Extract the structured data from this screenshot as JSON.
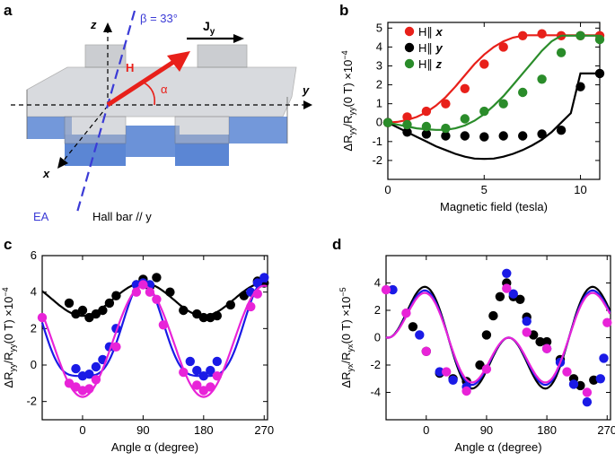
{
  "panels": {
    "a": "a",
    "b": "b",
    "c": "c",
    "d": "d"
  },
  "schematic": {
    "beta_label": "β = 33°",
    "current_label": "J",
    "current_sub": "y",
    "field_label": "H",
    "alpha_label": "α",
    "axis_z": "z",
    "axis_y": "y",
    "axis_x": "x",
    "ea_label": "EA",
    "hallbar_label": "Hall bar // y",
    "colors": {
      "field": "#e8201a",
      "ea": "#3b3bd6",
      "substrate": "#5b86d4"
    }
  },
  "chart_data": [
    {
      "id": "b",
      "type": "scatter",
      "xlabel": "Magnetic field (tesla)",
      "ylabel_main": "ΔR",
      "ylabel_sub": "yy",
      "ylabel_mid": "/R",
      "ylabel_sub2": "yy",
      "ylabel_tail": "(0 T) ×10",
      "ylabel_exp": "−4",
      "xlim": [
        0,
        11
      ],
      "ylim": [
        -3,
        5.3
      ],
      "xticks": [
        0,
        5,
        10
      ],
      "yticks": [
        -2,
        -1,
        0,
        1,
        2,
        3,
        4,
        5
      ],
      "legend": [
        "H∥",
        "H∥",
        "H∥"
      ],
      "legend_axes": [
        "x",
        "y",
        "z"
      ],
      "series": [
        {
          "name": "H∥x",
          "color": "#e8201a",
          "x": [
            0,
            1,
            2,
            3,
            4,
            5,
            6,
            7,
            8,
            9,
            10,
            11
          ],
          "y": [
            0,
            0.3,
            0.6,
            1.0,
            1.8,
            3.1,
            4.0,
            4.6,
            4.7,
            4.6,
            4.6,
            4.6
          ],
          "fit_x": [
            0,
            0.5,
            1,
            1.5,
            2,
            2.5,
            3,
            3.5,
            4,
            4.5,
            5,
            5.5,
            6,
            6.5,
            7,
            7.3,
            7.6,
            8,
            9,
            10,
            11
          ],
          "fit_y": [
            0,
            0.04,
            0.14,
            0.3,
            0.55,
            0.9,
            1.35,
            1.9,
            2.5,
            3.1,
            3.6,
            4.0,
            4.3,
            4.5,
            4.6,
            4.62,
            4.62,
            4.62,
            4.62,
            4.62,
            4.62
          ]
        },
        {
          "name": "H∥y",
          "color": "#000000",
          "x": [
            0,
            1,
            2,
            3,
            4,
            5,
            6,
            7,
            8,
            9,
            10,
            11
          ],
          "y": [
            0,
            -0.5,
            -0.6,
            -0.7,
            -0.7,
            -0.75,
            -0.7,
            -0.7,
            -0.6,
            -0.4,
            1.9,
            2.6
          ],
          "fit_x": [
            0,
            0.5,
            1,
            1.5,
            2,
            2.5,
            3,
            3.5,
            4,
            4.5,
            5,
            5.5,
            6,
            6.5,
            7,
            7.5,
            8,
            8.5,
            9,
            9.5,
            10,
            10.5,
            11
          ],
          "fit_y": [
            0,
            -0.25,
            -0.5,
            -0.75,
            -1.0,
            -1.25,
            -1.45,
            -1.65,
            -1.8,
            -1.9,
            -1.92,
            -1.9,
            -1.8,
            -1.65,
            -1.45,
            -1.2,
            -0.9,
            -0.5,
            0,
            0.5,
            2.6,
            2.6,
            2.6
          ]
        },
        {
          "name": "H∥z",
          "color": "#2a8c2a",
          "x": [
            0,
            1,
            2,
            3,
            4,
            5,
            6,
            7,
            8,
            9,
            10,
            11
          ],
          "y": [
            0,
            -0.1,
            -0.2,
            -0.3,
            0.2,
            0.6,
            1.0,
            1.6,
            2.3,
            3.7,
            4.6,
            4.4
          ],
          "fit_x": [
            0,
            0.5,
            1,
            1.5,
            2,
            2.5,
            3,
            3.5,
            4,
            4.5,
            5,
            5.5,
            6,
            6.5,
            7,
            7.5,
            8,
            8.5,
            9,
            10,
            11
          ],
          "fit_y": [
            0,
            -0.1,
            -0.2,
            -0.3,
            -0.35,
            -0.38,
            -0.38,
            -0.3,
            -0.15,
            0.1,
            0.45,
            0.9,
            1.4,
            2.0,
            2.6,
            3.2,
            3.8,
            4.3,
            4.6,
            4.6,
            4.6
          ]
        }
      ]
    },
    {
      "id": "c",
      "type": "scatter",
      "xlabel": "Angle α (degree)",
      "ylabel_main": "ΔR",
      "ylabel_sub": "yy",
      "ylabel_mid": "/R",
      "ylabel_sub2": "yy",
      "ylabel_tail": "(0 T) ×10",
      "ylabel_exp": "−4",
      "xlim": [
        -60,
        275
      ],
      "ylim": [
        -3,
        6
      ],
      "xticks": [
        0,
        90,
        180,
        270
      ],
      "yticks": [
        -2,
        0,
        2,
        4,
        6
      ],
      "series": [
        {
          "name": "black",
          "color": "#000000",
          "x": [
            -20,
            -10,
            0,
            10,
            20,
            30,
            40,
            50,
            80,
            90,
            100,
            110,
            130,
            150,
            170,
            180,
            190,
            200,
            220,
            240,
            260,
            270
          ],
          "y": [
            3.4,
            2.8,
            3.0,
            2.6,
            2.8,
            3.0,
            3.4,
            3.8,
            4.4,
            4.7,
            4.3,
            4.8,
            4.0,
            3.0,
            2.8,
            2.6,
            2.6,
            2.7,
            3.3,
            3.8,
            4.6,
            4.5
          ],
          "fit_type": "cos2",
          "fit_offset": 3.6,
          "fit_amp": 0.9
        },
        {
          "name": "blue",
          "color": "#1a1ae6",
          "x": [
            -10,
            0,
            10,
            20,
            30,
            40,
            50,
            80,
            90,
            100,
            160,
            170,
            180,
            190,
            200,
            250,
            260,
            270
          ],
          "y": [
            -0.2,
            -0.6,
            -0.5,
            -0.1,
            0.3,
            1.0,
            2.0,
            4.4,
            4.5,
            4.4,
            0.2,
            -0.3,
            -0.6,
            -0.3,
            0.2,
            4.0,
            4.5,
            4.8
          ],
          "fit_type": "cos2",
          "fit_offset": 2.0,
          "fit_amp": 2.6,
          "fit_power": 4
        },
        {
          "name": "magenta",
          "color": "#e823d8",
          "x": [
            -60,
            -20,
            -10,
            0,
            10,
            20,
            50,
            80,
            90,
            100,
            110,
            120,
            150,
            170,
            180,
            190,
            200,
            250,
            260
          ],
          "y": [
            2.6,
            -1.0,
            -1.2,
            -1.4,
            -1.3,
            -0.8,
            1.0,
            4.0,
            4.4,
            4.0,
            3.6,
            2.2,
            -0.4,
            -1.1,
            -1.4,
            -1.2,
            -0.6,
            3.2,
            3.9
          ],
          "fit_type": "cos2",
          "fit_offset": 1.3,
          "fit_amp": 3.05
        }
      ]
    },
    {
      "id": "d",
      "type": "scatter",
      "xlabel": "Angle α (degree)",
      "ylabel_main": "ΔR",
      "ylabel_sub": "yx",
      "ylabel_mid": "/R",
      "ylabel_sub2": "yx",
      "ylabel_tail": "(0 T) ×10",
      "ylabel_exp": "−5",
      "xlim": [
        -60,
        275
      ],
      "ylim": [
        -6,
        6
      ],
      "xticks": [
        0,
        90,
        180,
        270
      ],
      "yticks": [
        -4,
        -2,
        0,
        2,
        4
      ],
      "series": [
        {
          "name": "black",
          "color": "#000000",
          "x": [
            -20,
            0,
            20,
            40,
            60,
            80,
            90,
            100,
            110,
            120,
            130,
            140,
            150,
            160,
            170,
            180,
            200,
            220,
            230,
            250
          ],
          "y": [
            0.8,
            -1.0,
            -2.6,
            -3.0,
            -3.2,
            -2.0,
            0.2,
            1.6,
            3.0,
            4.0,
            3.0,
            2.8,
            1.5,
            0.2,
            -0.3,
            -0.3,
            -1.6,
            -3.0,
            -3.5,
            -3.1
          ],
          "fit_amp": 4.2
        },
        {
          "name": "blue",
          "color": "#1a1ae6",
          "x": [
            -50,
            -10,
            20,
            40,
            60,
            120,
            130,
            150,
            180,
            200,
            220,
            240,
            260,
            265
          ],
          "y": [
            3.5,
            0.2,
            -2.5,
            -3.1,
            -3.6,
            4.7,
            3.2,
            1.2,
            -0.8,
            -1.8,
            -3.4,
            -4.7,
            -3.0,
            -1.5
          ],
          "fit_amp": 3.9
        },
        {
          "name": "magenta",
          "color": "#e823d8",
          "x": [
            -60,
            -30,
            0,
            30,
            60,
            90,
            120,
            150,
            180,
            210,
            240,
            270
          ],
          "y": [
            3.5,
            1.8,
            -1.0,
            -2.5,
            -3.9,
            -2.3,
            3.6,
            0.4,
            -0.8,
            -2.5,
            -4.0,
            1.1
          ],
          "fit_amp": 3.7
        }
      ]
    }
  ]
}
